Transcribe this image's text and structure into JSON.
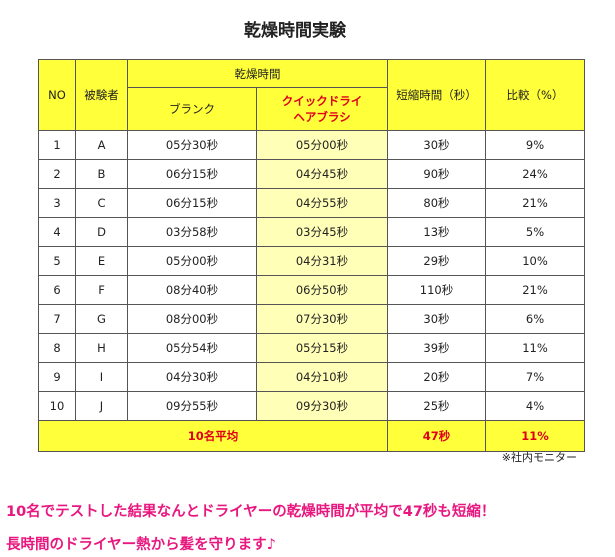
{
  "title": "乾燥時間実験",
  "table": {
    "header": {
      "no": "NO",
      "subject": "被験者",
      "drying_time": "乾燥時間",
      "blank": "ブランク",
      "quick_dry": [
        "クイックドライ",
        "ヘアブラシ"
      ],
      "shortened": "短縮時間（秒）",
      "ratio": "比較（%）"
    },
    "rows": [
      [
        "1",
        "A",
        "05分30秒",
        "05分00秒",
        "30秒",
        "9%"
      ],
      [
        "2",
        "B",
        "06分15秒",
        "04分45秒",
        "90秒",
        "24%"
      ],
      [
        "3",
        "C",
        "06分15秒",
        "04分55秒",
        "80秒",
        "21%"
      ],
      [
        "4",
        "D",
        "03分58秒",
        "03分45秒",
        "13秒",
        "5%"
      ],
      [
        "5",
        "E",
        "05分00秒",
        "04分31秒",
        "29秒",
        "10%"
      ],
      [
        "6",
        "F",
        "08分40秒",
        "06分50秒",
        "110秒",
        "21%"
      ],
      [
        "7",
        "G",
        "08分00秒",
        "07分30秒",
        "30秒",
        "6%"
      ],
      [
        "8",
        "H",
        "05分54秒",
        "05分15秒",
        "39秒",
        "11%"
      ],
      [
        "9",
        "I",
        "04分30秒",
        "04分10秒",
        "20秒",
        "7%"
      ],
      [
        "10",
        "J",
        "09分55秒",
        "09分30秒",
        "25秒",
        "4%"
      ]
    ],
    "average": {
      "label": "10名平均",
      "shortened": "47秒",
      "ratio": "11%"
    }
  },
  "note": "※社内モニター",
  "caption": [
    "10名でテストした結果なんとドライヤーの乾燥時間が平均で47秒も短縮！",
    "長時間のドライヤー熱から髪を守ります♪"
  ]
}
